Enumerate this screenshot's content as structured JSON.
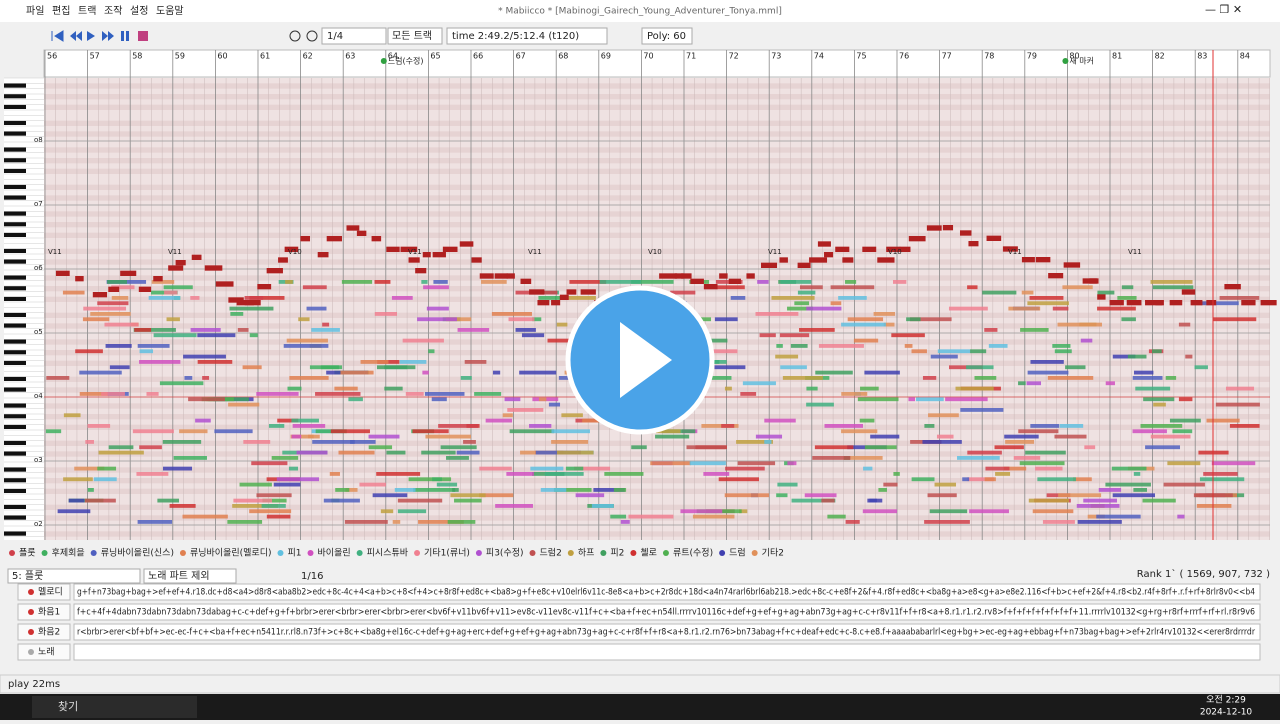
{
  "window": {
    "title": "* Mabiicco *  [Mabinogi_Gairech_Young_Adventurer_Tonya.mml]"
  },
  "menu": [
    "파일",
    "편집",
    "트랙",
    "조작",
    "설정",
    "도움말"
  ],
  "toolbar": {
    "zoom": "1/4",
    "track_filter": "모든 트랙",
    "time": "time 2:49.2/5:12.4 (t120)",
    "poly": "Poly: 60"
  },
  "ruler": {
    "measures": [
      56,
      57,
      58,
      59,
      60,
      61,
      62,
      63,
      64,
      65,
      66,
      67,
      68,
      69,
      70,
      71,
      72,
      73,
      74,
      75,
      76,
      77,
      78,
      79,
      80,
      81,
      82,
      83,
      84
    ],
    "markers": [
      {
        "measure": 64,
        "label": "드럼(수정)"
      },
      {
        "measure": 80,
        "label": "새 마커"
      }
    ]
  },
  "octaves": [
    "o8",
    "o7",
    "o6",
    "o5",
    "o4",
    "o3",
    "o2"
  ],
  "note_labels": [
    "V11",
    "V11",
    "V10",
    "V11",
    "V11",
    "V10",
    "V11",
    "V10",
    "V11",
    "V11"
  ],
  "tracks": [
    {
      "name": "플룻",
      "color": "#d0404a"
    },
    {
      "name": "후제회을",
      "color": "#40b060"
    },
    {
      "name": "류닝바이올린(신스)",
      "color": "#5060c0"
    },
    {
      "name": "류닝바이올린(멜로디)",
      "color": "#e08050"
    },
    {
      "name": "피1",
      "color": "#60c0e0"
    },
    {
      "name": "바이올린",
      "color": "#d050c0"
    },
    {
      "name": "피시스튜바",
      "color": "#40b080"
    },
    {
      "name": "기타1(류너)",
      "color": "#f08090"
    },
    {
      "name": "피3(수정)",
      "color": "#b050d0"
    },
    {
      "name": "드럼2",
      "color": "#c05050"
    },
    {
      "name": "하프",
      "color": "#c0a040"
    },
    {
      "name": "피2",
      "color": "#40a060"
    },
    {
      "name": "첼로",
      "color": "#d03030"
    },
    {
      "name": "류트(수정)",
      "color": "#50b050"
    },
    {
      "name": "드럼",
      "color": "#4040b0"
    },
    {
      "name": "기타2",
      "color": "#e0905a"
    }
  ],
  "panel": {
    "track_select": "5: 플룻",
    "part_select": "노래 파트 제외",
    "step": "1/16",
    "rank": "Rank 1` ( 1569, 907, 732 )",
    "mml": [
      {
        "label": "멜로디",
        "text": "g+f+n73bag+bag+>ef+ef+4.r18.dc+d8<a4>d8r8<aba8b2>edc+8c-4c+4<a+b>c+8<f+4>c+8r8f+ed8c+<ba8>g+f+e8c+v10elrl6v11c-8e8<a+b>c+2r8dc+18d<a4n74rarl6brl6ab218.>edc+8c-c+e8f+2&f+4.r8f+ed8c+<ba8g+a>e8<g+a>e8e2.116<f+b>c+ef+2&f+4.r8<b2.r4f+8rf+.r.f+rf+8rlr8v0<<b4"
      },
      {
        "label": "화음1",
        "text": "f+c+4f+4dabn73dabn73dabn73dabag+c-c+def+g+f+brbr>erer<brbr>erer<brbr>erer<bv6f+v11bv6f+v11>ev8c-v11ev8c-v11f+c+<ba+f+ec+n54ll.rrrrv10116c+def+g+ef+g+ag+abn73g+ag+c-c+r8v11f+f+r8<a+8.r1.r1.r2.rv8>f+f+f+f+f+f+f+f+11.rrrrlv10132<g+rg+r8rf+rrrf+rf+rl.r8r9v6"
      },
      {
        "label": "화음2",
        "text": "r<brbr>erer<bf+bf+>ec-ec-f+c+<ba+f+ec+n5411r.r.rl8.n73f+>c+8c+<ba8g+el16c-c+def+g+ag+erc+def+g+ef+g+ag+abn73g+ag+c-c+r8f+f+r8<a+8.r1.r2.rn76>bn73abag+f+c+deaf+edc+c-8.c+e8.f+aaaababarlrl<eg+bg+>ec-eg+ag+ebbag+f+n73bag+bag+>ef+2rlr4rv10132<<erer8rdrrrdr"
      },
      {
        "label": "노래",
        "text": ""
      }
    ]
  },
  "status": "play 22ms",
  "taskbar": {
    "search": "찾기",
    "time": "오전 2:29",
    "date": "2024-12-10"
  }
}
